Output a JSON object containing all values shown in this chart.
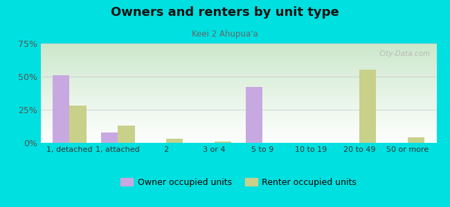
{
  "title": "Owners and renters by unit type",
  "subtitle": "Keei 2 Ahupua'a",
  "categories": [
    "1, detached",
    "1, attached",
    "2",
    "3 or 4",
    "5 to 9",
    "10 to 19",
    "20 to 49",
    "50 or more"
  ],
  "owner_values": [
    51,
    8,
    0,
    0,
    42,
    0,
    0,
    0
  ],
  "renter_values": [
    28,
    13,
    3,
    1,
    0,
    0,
    55,
    4
  ],
  "owner_color": "#c8a8e0",
  "renter_color": "#c8d08a",
  "background_color": "#00e0e0",
  "ylim": [
    0,
    75
  ],
  "yticks": [
    0,
    25,
    50,
    75
  ],
  "ytick_labels": [
    "0%",
    "25%",
    "50%",
    "75%"
  ],
  "bar_width": 0.35,
  "legend_owner": "Owner occupied units",
  "legend_renter": "Renter occupied units"
}
